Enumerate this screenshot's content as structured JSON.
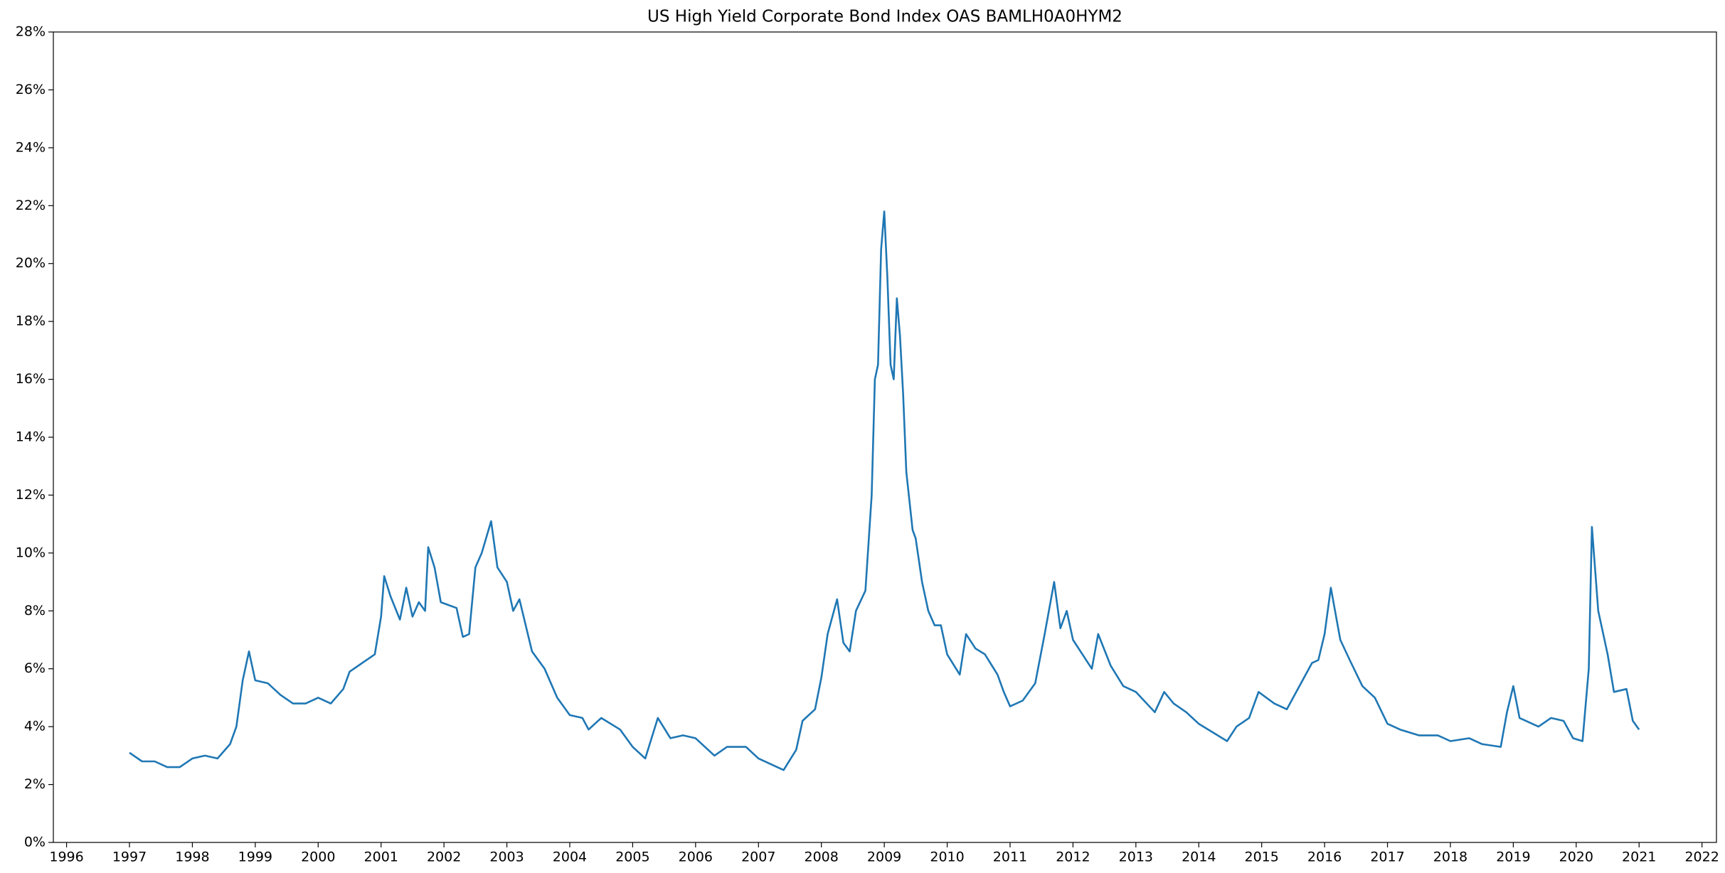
{
  "chart_data": {
    "type": "line",
    "title": "US High Yield Corporate Bond Index OAS BAMLH0A0HYM2",
    "x": [
      1997.0,
      1997.2,
      1997.4,
      1997.6,
      1997.8,
      1998.0,
      1998.2,
      1998.4,
      1998.6,
      1998.7,
      1998.8,
      1998.9,
      1999.0,
      1999.2,
      1999.4,
      1999.6,
      1999.8,
      2000.0,
      2000.2,
      2000.4,
      2000.5,
      2000.7,
      2000.9,
      2001.0,
      2001.05,
      2001.15,
      2001.3,
      2001.4,
      2001.5,
      2001.6,
      2001.7,
      2001.75,
      2001.85,
      2001.95,
      2002.2,
      2002.3,
      2002.4,
      2002.5,
      2002.6,
      2002.75,
      2002.85,
      2003.0,
      2003.1,
      2003.2,
      2003.4,
      2003.6,
      2003.8,
      2004.0,
      2004.2,
      2004.3,
      2004.5,
      2004.8,
      2005.0,
      2005.2,
      2005.4,
      2005.6,
      2005.8,
      2006.0,
      2006.3,
      2006.5,
      2006.8,
      2007.0,
      2007.2,
      2007.4,
      2007.6,
      2007.7,
      2007.9,
      2008.0,
      2008.1,
      2008.25,
      2008.35,
      2008.45,
      2008.55,
      2008.7,
      2008.8,
      2008.85,
      2008.9,
      2008.95,
      2009.0,
      2009.05,
      2009.1,
      2009.15,
      2009.2,
      2009.25,
      2009.3,
      2009.35,
      2009.45,
      2009.5,
      2009.6,
      2009.7,
      2009.8,
      2009.9,
      2010.0,
      2010.2,
      2010.3,
      2010.45,
      2010.6,
      2010.8,
      2010.9,
      2011.0,
      2011.2,
      2011.4,
      2011.55,
      2011.7,
      2011.8,
      2011.9,
      2012.0,
      2012.3,
      2012.4,
      2012.6,
      2012.8,
      2013.0,
      2013.3,
      2013.45,
      2013.6,
      2013.8,
      2014.0,
      2014.3,
      2014.45,
      2014.6,
      2014.8,
      2014.95,
      2015.2,
      2015.4,
      2015.6,
      2015.8,
      2015.9,
      2016.0,
      2016.1,
      2016.25,
      2016.4,
      2016.6,
      2016.8,
      2017.0,
      2017.2,
      2017.5,
      2017.8,
      2018.0,
      2018.3,
      2018.5,
      2018.8,
      2018.9,
      2019.0,
      2019.1,
      2019.4,
      2019.6,
      2019.8,
      2019.95,
      2020.1,
      2020.2,
      2020.25,
      2020.35,
      2020.5,
      2020.6,
      2020.8,
      2020.9,
      2021.0
    ],
    "values": [
      3.1,
      2.8,
      2.8,
      2.6,
      2.6,
      2.9,
      3.0,
      2.9,
      3.4,
      4.0,
      5.6,
      6.6,
      5.6,
      5.5,
      5.1,
      4.8,
      4.8,
      5.0,
      4.8,
      5.3,
      5.9,
      6.2,
      6.5,
      7.8,
      9.2,
      8.5,
      7.7,
      8.8,
      7.8,
      8.3,
      8.0,
      10.2,
      9.5,
      8.3,
      8.1,
      7.1,
      7.2,
      9.5,
      10.0,
      11.1,
      9.5,
      9.0,
      8.0,
      8.4,
      6.6,
      6.0,
      5.0,
      4.4,
      4.3,
      3.9,
      4.3,
      3.9,
      3.3,
      2.9,
      4.3,
      3.6,
      3.7,
      3.6,
      3.0,
      3.3,
      3.3,
      2.9,
      2.7,
      2.5,
      3.2,
      4.2,
      4.6,
      5.7,
      7.2,
      8.4,
      6.9,
      6.6,
      8.0,
      8.7,
      12.0,
      16.0,
      16.5,
      20.5,
      21.8,
      19.5,
      16.5,
      16.0,
      18.8,
      17.5,
      15.5,
      12.8,
      10.8,
      10.5,
      9.0,
      8.0,
      7.5,
      7.5,
      6.5,
      5.8,
      7.2,
      6.7,
      6.5,
      5.8,
      5.2,
      4.7,
      4.9,
      5.5,
      7.2,
      9.0,
      7.4,
      8.0,
      7.0,
      6.0,
      7.2,
      6.1,
      5.4,
      5.2,
      4.5,
      5.2,
      4.8,
      4.5,
      4.1,
      3.7,
      3.5,
      4.0,
      4.3,
      5.2,
      4.8,
      4.6,
      5.4,
      6.2,
      6.3,
      7.2,
      8.8,
      7.0,
      6.3,
      5.4,
      5.0,
      4.1,
      3.9,
      3.7,
      3.7,
      3.5,
      3.6,
      3.4,
      3.3,
      4.5,
      5.4,
      4.3,
      4.0,
      4.3,
      4.2,
      3.6,
      3.5,
      6.0,
      10.9,
      8.0,
      6.5,
      5.2,
      5.3,
      4.2,
      3.9
    ],
    "color": "#1f77b4",
    "xlim": [
      1995.79,
      2022.23
    ],
    "xticks": [
      1996,
      1997,
      1998,
      1999,
      2000,
      2001,
      2002,
      2003,
      2004,
      2005,
      2006,
      2007,
      2008,
      2009,
      2010,
      2011,
      2012,
      2013,
      2014,
      2015,
      2016,
      2017,
      2018,
      2019,
      2020,
      2021,
      2022
    ],
    "ylim": [
      0,
      28
    ],
    "yticks": [
      {
        "value": 0,
        "label": "0%"
      },
      {
        "value": 2,
        "label": "2%"
      },
      {
        "value": 4,
        "label": "4%"
      },
      {
        "value": 6,
        "label": "6%"
      },
      {
        "value": 8,
        "label": "8%"
      },
      {
        "value": 10,
        "label": "10%"
      },
      {
        "value": 12,
        "label": "12%"
      },
      {
        "value": 14,
        "label": "14%"
      },
      {
        "value": 16,
        "label": "16%"
      },
      {
        "value": 18,
        "label": "18%"
      },
      {
        "value": 20,
        "label": "20%"
      },
      {
        "value": 22,
        "label": "22%"
      },
      {
        "value": 24,
        "label": "24%"
      },
      {
        "value": 26,
        "label": "26%"
      },
      {
        "value": 28,
        "label": "28%"
      }
    ]
  }
}
